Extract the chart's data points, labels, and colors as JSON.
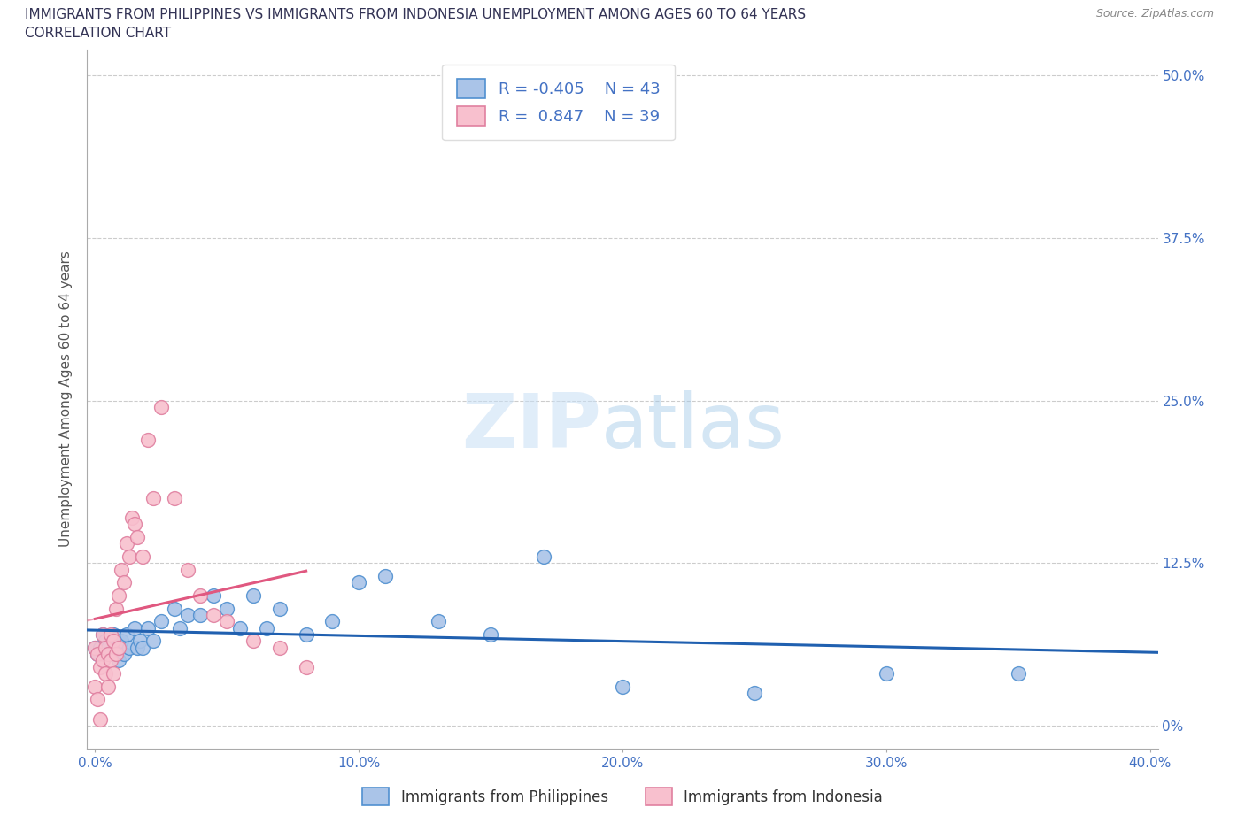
{
  "title_line1": "IMMIGRANTS FROM PHILIPPINES VS IMMIGRANTS FROM INDONESIA UNEMPLOYMENT AMONG AGES 60 TO 64 YEARS",
  "title_line2": "CORRELATION CHART",
  "source": "Source: ZipAtlas.com",
  "ylabel": "Unemployment Among Ages 60 to 64 years",
  "xlim": [
    -0.003,
    0.403
  ],
  "ylim": [
    -0.018,
    0.52
  ],
  "xticks": [
    0.0,
    0.1,
    0.2,
    0.3,
    0.4
  ],
  "xtick_labels": [
    "0.0%",
    "10.0%",
    "20.0%",
    "30.0%",
    "40.0%"
  ],
  "ytick_labels_right": [
    "0%",
    "12.5%",
    "25.0%",
    "37.5%",
    "50.0%"
  ],
  "ytick_vals_right": [
    0.0,
    0.125,
    0.25,
    0.375,
    0.5
  ],
  "watermark_zip": "ZIP",
  "watermark_atlas": "atlas",
  "philippines_color": "#aac4e8",
  "philippines_edge_color": "#5090d0",
  "philippines_line_color": "#2060b0",
  "indonesia_color": "#f8c0ce",
  "indonesia_edge_color": "#e080a0",
  "indonesia_line_color": "#e05880",
  "legend_philippines_R": "-0.405",
  "legend_philippines_N": "43",
  "legend_indonesia_R": "0.847",
  "legend_indonesia_N": "39",
  "philippines_x": [
    0.0,
    0.001,
    0.002,
    0.003,
    0.003,
    0.004,
    0.005,
    0.006,
    0.007,
    0.008,
    0.009,
    0.01,
    0.011,
    0.012,
    0.013,
    0.015,
    0.016,
    0.017,
    0.018,
    0.02,
    0.022,
    0.025,
    0.03,
    0.032,
    0.035,
    0.04,
    0.045,
    0.05,
    0.055,
    0.06,
    0.065,
    0.07,
    0.08,
    0.09,
    0.1,
    0.11,
    0.13,
    0.15,
    0.17,
    0.2,
    0.25,
    0.3,
    0.35
  ],
  "philippines_y": [
    0.06,
    0.055,
    0.06,
    0.05,
    0.07,
    0.065,
    0.06,
    0.055,
    0.07,
    0.06,
    0.05,
    0.065,
    0.055,
    0.07,
    0.06,
    0.075,
    0.06,
    0.065,
    0.06,
    0.075,
    0.065,
    0.08,
    0.09,
    0.075,
    0.085,
    0.085,
    0.1,
    0.09,
    0.075,
    0.1,
    0.075,
    0.09,
    0.07,
    0.08,
    0.11,
    0.115,
    0.08,
    0.07,
    0.13,
    0.03,
    0.025,
    0.04,
    0.04
  ],
  "indonesia_x": [
    0.0,
    0.0,
    0.001,
    0.001,
    0.002,
    0.002,
    0.003,
    0.003,
    0.004,
    0.004,
    0.005,
    0.005,
    0.006,
    0.006,
    0.007,
    0.007,
    0.008,
    0.008,
    0.009,
    0.009,
    0.01,
    0.011,
    0.012,
    0.013,
    0.014,
    0.015,
    0.016,
    0.018,
    0.02,
    0.022,
    0.025,
    0.03,
    0.035,
    0.04,
    0.045,
    0.05,
    0.06,
    0.07,
    0.08
  ],
  "indonesia_y": [
    0.06,
    0.03,
    0.055,
    0.02,
    0.045,
    0.005,
    0.07,
    0.05,
    0.06,
    0.04,
    0.055,
    0.03,
    0.07,
    0.05,
    0.065,
    0.04,
    0.09,
    0.055,
    0.1,
    0.06,
    0.12,
    0.11,
    0.14,
    0.13,
    0.16,
    0.155,
    0.145,
    0.13,
    0.22,
    0.175,
    0.245,
    0.175,
    0.12,
    0.1,
    0.085,
    0.08,
    0.065,
    0.06,
    0.045
  ],
  "in_line_x_start": -0.003,
  "in_line_x_end": 0.06,
  "in_line_dash_x_start": -0.003,
  "in_line_dash_x_end": 0.015,
  "ph_line_x_start": -0.003,
  "ph_line_x_end": 0.403
}
